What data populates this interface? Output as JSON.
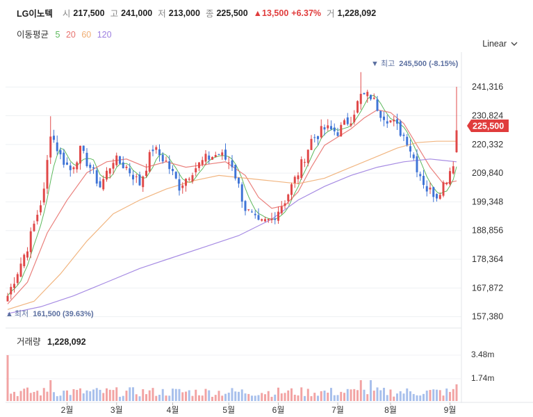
{
  "header": {
    "name": "LG이노텍",
    "open_label": "시",
    "open": "217,500",
    "high_label": "고",
    "high": "241,000",
    "low_label": "저",
    "low": "213,000",
    "close_label": "종",
    "close": "225,500",
    "change": "▲13,500",
    "change_pct": "+6.37%",
    "volume_label": "거",
    "volume": "1,228,092"
  },
  "ma_legend": {
    "title": "이동평균",
    "periods": [
      {
        "label": "5",
        "color": "#5cb85c"
      },
      {
        "label": "20",
        "color": "#e8726e"
      },
      {
        "label": "60",
        "color": "#f0ad72"
      },
      {
        "label": "120",
        "color": "#9c7ee0"
      }
    ]
  },
  "scale_selector": {
    "label": "Linear"
  },
  "annotations": {
    "max_label": "▼ 최고",
    "max_value": "245,500 (-8.15%)",
    "min_label": "최저",
    "min_value": "161,500 (39.63%)",
    "current_price": "225,500"
  },
  "volume_panel": {
    "title": "거래량",
    "value": "1,228,092",
    "ticks": [
      "3.48m",
      "1.74m"
    ]
  },
  "chart_data": {
    "type": "candlestick",
    "y_ticks": [
      "241,316",
      "230,824",
      "220,332",
      "209,840",
      "199,348",
      "188,856",
      "178,364",
      "167,872",
      "157,380"
    ],
    "ylim": [
      155000,
      249000
    ],
    "x_ticks": [
      "2월",
      "3월",
      "4월",
      "5월",
      "6월",
      "7월",
      "8월",
      "9월"
    ],
    "anchors": [
      {
        "i": 0,
        "p": 165000
      },
      {
        "i": 6,
        "p": 183000
      },
      {
        "i": 11,
        "p": 203000
      },
      {
        "i": 13,
        "p": 225000
      },
      {
        "i": 16,
        "p": 216000
      },
      {
        "i": 19,
        "p": 211000
      },
      {
        "i": 22,
        "p": 218000
      },
      {
        "i": 25,
        "p": 212000
      },
      {
        "i": 28,
        "p": 205000
      },
      {
        "i": 32,
        "p": 215000
      },
      {
        "i": 36,
        "p": 212000
      },
      {
        "i": 40,
        "p": 206000
      },
      {
        "i": 44,
        "p": 219000
      },
      {
        "i": 48,
        "p": 214000
      },
      {
        "i": 52,
        "p": 205000
      },
      {
        "i": 56,
        "p": 211000
      },
      {
        "i": 60,
        "p": 215000
      },
      {
        "i": 64,
        "p": 217000
      },
      {
        "i": 68,
        "p": 213000
      },
      {
        "i": 72,
        "p": 197000
      },
      {
        "i": 76,
        "p": 191000
      },
      {
        "i": 80,
        "p": 193000
      },
      {
        "i": 84,
        "p": 200000
      },
      {
        "i": 88,
        "p": 210000
      },
      {
        "i": 92,
        "p": 222000
      },
      {
        "i": 96,
        "p": 226000
      },
      {
        "i": 100,
        "p": 225000
      },
      {
        "i": 104,
        "p": 230000
      },
      {
        "i": 107,
        "p": 238000
      },
      {
        "i": 110,
        "p": 238000
      },
      {
        "i": 113,
        "p": 232000
      },
      {
        "i": 117,
        "p": 228000
      },
      {
        "i": 121,
        "p": 222000
      },
      {
        "i": 124,
        "p": 212000
      },
      {
        "i": 127,
        "p": 204000
      },
      {
        "i": 130,
        "p": 202000
      },
      {
        "i": 133,
        "p": 208000
      },
      {
        "i": 135,
        "p": 214000
      },
      {
        "i": 136,
        "p": 225500
      }
    ],
    "ma_lines": [
      {
        "period": 20,
        "color": "#e8726e",
        "points": [
          [
            0,
            162000
          ],
          [
            6,
            170000
          ],
          [
            12,
            188000
          ],
          [
            18,
            200000
          ],
          [
            24,
            210000
          ],
          [
            30,
            214000
          ],
          [
            36,
            215000
          ],
          [
            42,
            212000
          ],
          [
            48,
            214000
          ],
          [
            54,
            212000
          ],
          [
            60,
            213000
          ],
          [
            66,
            214000
          ],
          [
            72,
            209000
          ],
          [
            76,
            201000
          ],
          [
            80,
            197000
          ],
          [
            84,
            198000
          ],
          [
            88,
            203000
          ],
          [
            92,
            212000
          ],
          [
            96,
            220000
          ],
          [
            100,
            223000
          ],
          [
            104,
            226000
          ],
          [
            108,
            230000
          ],
          [
            112,
            233000
          ],
          [
            116,
            232000
          ],
          [
            120,
            228000
          ],
          [
            124,
            220000
          ],
          [
            128,
            212000
          ],
          [
            132,
            206000
          ],
          [
            136,
            207000
          ]
        ]
      },
      {
        "period": 60,
        "color": "#f0ad72",
        "points": [
          [
            0,
            160000
          ],
          [
            8,
            163000
          ],
          [
            16,
            173000
          ],
          [
            24,
            185000
          ],
          [
            32,
            195000
          ],
          [
            40,
            200000
          ],
          [
            48,
            204000
          ],
          [
            56,
            207000
          ],
          [
            64,
            209000
          ],
          [
            72,
            208000
          ],
          [
            80,
            207000
          ],
          [
            88,
            206000
          ],
          [
            96,
            208000
          ],
          [
            104,
            212000
          ],
          [
            112,
            216000
          ],
          [
            118,
            219000
          ],
          [
            124,
            221000
          ],
          [
            130,
            221500
          ],
          [
            136,
            221500
          ]
        ]
      },
      {
        "period": 120,
        "color": "#9c7ee0",
        "points": [
          [
            0,
            158500
          ],
          [
            10,
            161000
          ],
          [
            20,
            165000
          ],
          [
            30,
            170000
          ],
          [
            40,
            175000
          ],
          [
            50,
            179000
          ],
          [
            60,
            183000
          ],
          [
            70,
            187000
          ],
          [
            80,
            193000
          ],
          [
            88,
            200000
          ],
          [
            96,
            205000
          ],
          [
            104,
            209000
          ],
          [
            112,
            212000
          ],
          [
            120,
            214000
          ],
          [
            128,
            215000
          ],
          [
            136,
            214000
          ]
        ]
      }
    ],
    "x_range": [
      0,
      136
    ],
    "x_tick_index": [
      18,
      33,
      50,
      67,
      82,
      100,
      116,
      134
    ]
  }
}
